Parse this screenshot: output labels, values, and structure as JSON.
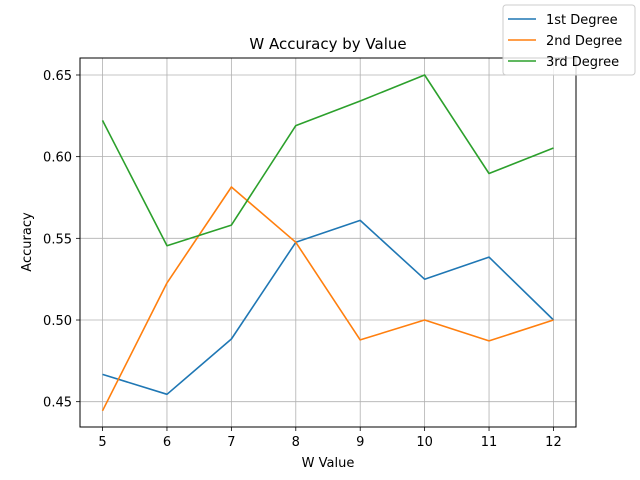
{
  "chart_data": {
    "type": "line",
    "title": "W Accuracy by Value",
    "xlabel": "W Value",
    "ylabel": "Accuracy",
    "x": [
      5,
      6,
      7,
      8,
      9,
      10,
      11,
      12
    ],
    "x_ticks": [
      5,
      6,
      7,
      8,
      9,
      10,
      11,
      12
    ],
    "x_tick_labels": [
      "5",
      "6",
      "7",
      "8",
      "9",
      "10",
      "11",
      "12"
    ],
    "xlim": [
      4.65,
      12.35
    ],
    "y_ticks": [
      0.45,
      0.5,
      0.55,
      0.6,
      0.65
    ],
    "y_tick_labels": [
      "0.45",
      "0.50",
      "0.55",
      "0.60",
      "0.65"
    ],
    "ylim": [
      0.4345,
      0.6604
    ],
    "grid": true,
    "legend_position": "top-right, outside plot",
    "series": [
      {
        "name": "1st Degree",
        "color": "#1f77b4",
        "values": [
          0.4667,
          0.4545,
          0.4884,
          0.5476,
          0.561,
          0.525,
          0.5385,
          0.5
        ]
      },
      {
        "name": "2nd Degree",
        "color": "#ff7f0e",
        "values": [
          0.4444,
          0.5227,
          0.5814,
          0.5476,
          0.4878,
          0.5,
          0.4872,
          0.5
        ]
      },
      {
        "name": "3rd Degree",
        "color": "#2ca02c",
        "values": [
          0.6222,
          0.5455,
          0.5581,
          0.619,
          0.6341,
          0.65,
          0.5897,
          0.6053
        ]
      }
    ]
  }
}
